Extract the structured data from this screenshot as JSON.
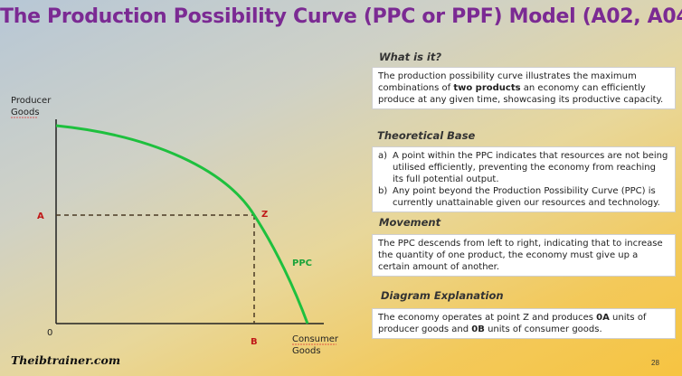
{
  "title": "The Production Possibility Curve (PPC or PPF) Model (A02, A04)",
  "diagram": {
    "y_axis_label_line1": "Producer",
    "y_axis_label_line2": "Goods",
    "x_axis_label_line1": "Consumer",
    "x_axis_label_line2": "Goods",
    "origin_label": "0",
    "point_a_label": "A",
    "point_b_label": "B",
    "point_z_label": "Z",
    "curve_label": "PPC",
    "colors": {
      "curve": "#1ec03e",
      "dashed": "#4a3a24",
      "point_labels": "#c01818"
    }
  },
  "sections": {
    "what_is_it": {
      "heading": "What is it?",
      "text_before": "The production possibility curve illustrates the maximum combinations of ",
      "text_bold": "two products",
      "text_after": " an economy can efficiently produce at any given time, showcasing its productive capacity."
    },
    "theoretical_base": {
      "heading": "Theoretical Base",
      "items": [
        {
          "marker": "a)",
          "text": "A point within the PPC indicates that resources are not being utilised efficiently, preventing the economy from reaching its full potential output."
        },
        {
          "marker": "b)",
          "text": "Any point beyond the Production Possibility Curve (PPC) is currently unattainable given our resources and technology."
        }
      ]
    },
    "movement": {
      "heading": "Movement",
      "text": "The PPC descends from left to right, indicating that to increase the quantity of one product, the economy must give up a certain amount of another."
    },
    "diagram_explanation": {
      "heading": "Diagram Explanation",
      "text_1": "The economy operates at point Z and produces ",
      "bold_1": "0A",
      "text_2": " units of producer goods and ",
      "bold_2": "0B",
      "text_3": " units of consumer goods."
    }
  },
  "brand": "Theibtrainer.com",
  "page_number": "28"
}
